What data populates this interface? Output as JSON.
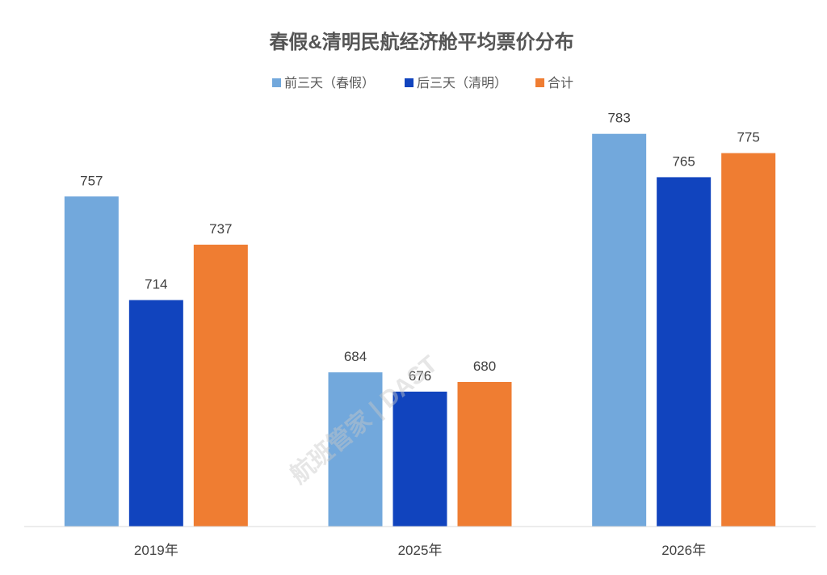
{
  "chart_data": {
    "type": "bar",
    "title": "春假&清明民航经济舱平均票价分布",
    "categories": [
      "2019年",
      "2025年",
      "2026年"
    ],
    "series": [
      {
        "name": "前三天（春假）",
        "color": "#72a8dc",
        "values": [
          757,
          684,
          783
        ]
      },
      {
        "name": "后三天（清明）",
        "color": "#1144be",
        "values": [
          714,
          676,
          765
        ]
      },
      {
        "name": "合计",
        "color": "#ef7d32",
        "values": [
          737,
          680,
          775
        ]
      }
    ],
    "xlabel": "",
    "ylabel": "",
    "ylim": [
      620,
      800
    ],
    "grid": false,
    "legend_position": "top-center",
    "data_labels": true
  },
  "watermark": "航班管家 | DAST"
}
